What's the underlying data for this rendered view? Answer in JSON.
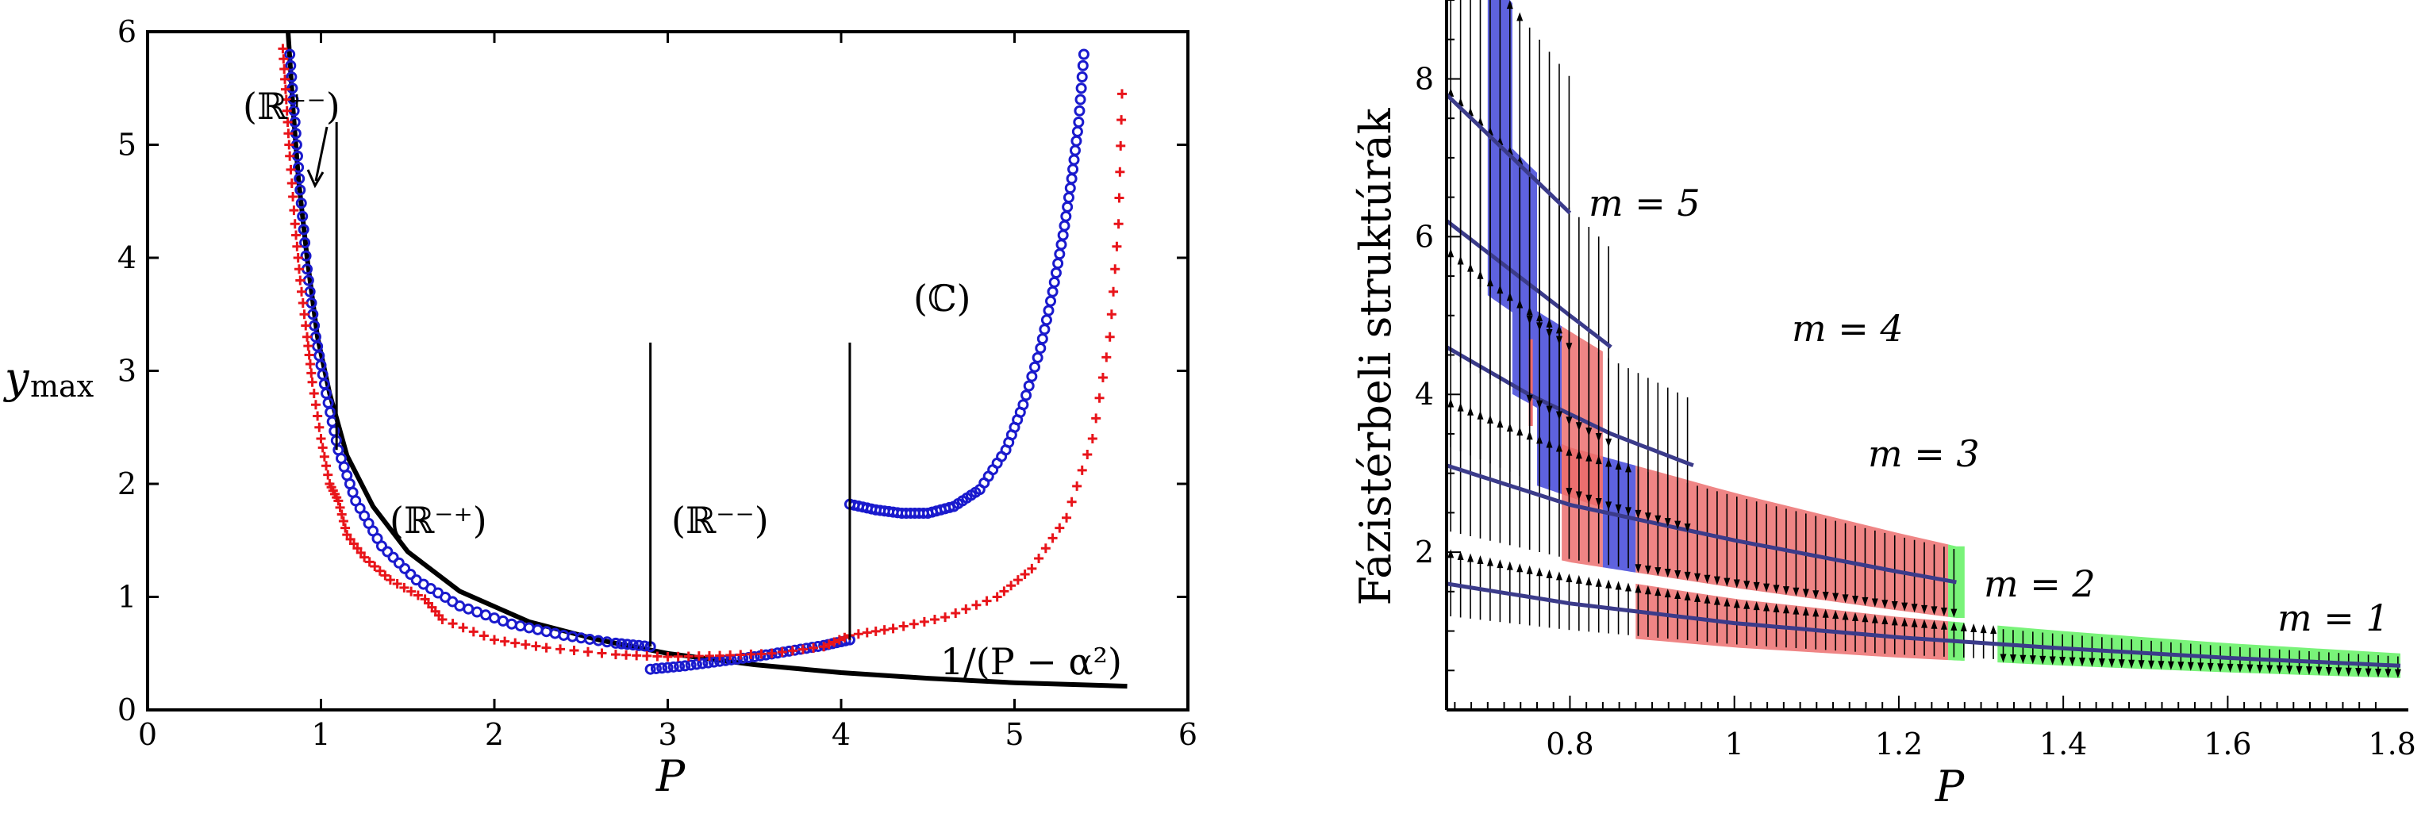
{
  "chart_data": [
    {
      "type": "scatter",
      "title": "",
      "xlabel": "P",
      "ylabel": "y",
      "ylabel_sub": "max",
      "xlim": [
        0,
        6
      ],
      "ylim": [
        0,
        6
      ],
      "xticks": [
        "0",
        "1",
        "2",
        "3",
        "4",
        "5",
        "6"
      ],
      "yticks": [
        "0",
        "1",
        "2",
        "3",
        "4",
        "5",
        "6"
      ],
      "grid": false,
      "series": [
        {
          "color": "#000000",
          "style": "line",
          "x": [
            0.81,
            0.84,
            0.87,
            0.92,
            0.98,
            1.05,
            1.15,
            1.3,
            1.5,
            1.8,
            2.2,
            2.6,
            3.0,
            3.5,
            4.0,
            4.5,
            5.0,
            5.65
          ],
          "y": [
            6.0,
            5.3,
            4.7,
            4.0,
            3.3,
            2.8,
            2.25,
            1.8,
            1.4,
            1.05,
            0.78,
            0.62,
            0.5,
            0.4,
            0.33,
            0.28,
            0.24,
            0.21
          ]
        },
        {
          "color": "#1a1acd",
          "style": "circles",
          "x": [
            0.82,
            0.85,
            0.88,
            0.92,
            0.97,
            1.03,
            1.1,
            1.2,
            1.35,
            1.55,
            1.8,
            2.1,
            2.4,
            2.7,
            2.9
          ],
          "y": [
            5.8,
            5.2,
            4.6,
            3.9,
            3.3,
            2.8,
            2.3,
            1.85,
            1.45,
            1.15,
            0.92,
            0.76,
            0.66,
            0.59,
            0.56
          ]
        },
        {
          "color": "#1a1acd",
          "style": "circles",
          "x": [
            2.9,
            3.1,
            3.3,
            3.5,
            3.7,
            3.9,
            4.05
          ],
          "y": [
            0.36,
            0.39,
            0.43,
            0.47,
            0.52,
            0.57,
            0.62
          ]
        },
        {
          "color": "#1a1acd",
          "style": "circles",
          "x": [
            4.05,
            4.2,
            4.35,
            4.5,
            4.65,
            4.8,
            4.95,
            5.05,
            5.15,
            5.22,
            5.28,
            5.33,
            5.37,
            5.4
          ],
          "y": [
            1.82,
            1.77,
            1.74,
            1.74,
            1.8,
            1.95,
            2.3,
            2.7,
            3.2,
            3.7,
            4.2,
            4.7,
            5.2,
            5.8
          ]
        },
        {
          "color": "#e8141a",
          "style": "plus",
          "x": [
            0.78,
            0.8,
            0.82,
            0.85,
            0.88,
            0.92,
            0.95,
            1.0,
            1.05,
            1.1,
            1.15,
            1.25,
            1.4,
            1.6,
            1.7,
            2.0,
            2.3,
            2.7,
            3.0,
            3.3,
            3.6,
            3.9,
            4.05,
            4.3,
            4.6,
            4.9,
            5.1,
            5.3,
            5.45,
            5.55,
            5.6,
            5.62
          ],
          "y": [
            5.85,
            5.4,
            4.9,
            4.3,
            3.8,
            3.3,
            2.9,
            2.4,
            2.0,
            1.85,
            1.55,
            1.35,
            1.15,
            0.98,
            0.8,
            0.62,
            0.55,
            0.49,
            0.47,
            0.48,
            0.5,
            0.56,
            0.66,
            0.72,
            0.82,
            1.0,
            1.25,
            1.7,
            2.4,
            3.3,
            4.3,
            5.45
          ]
        }
      ],
      "annotations": {
        "r_pm": "(ℝ⁺⁻)",
        "r_mp": "(ℝ⁻⁺)",
        "r_mm": "(ℝ⁻⁻)",
        "c": "(ℂ)",
        "formula": "1/(P − α²)"
      },
      "vlines": [
        {
          "x": 1.09,
          "y": [
            2.3,
            5.2
          ]
        },
        {
          "x": 2.9,
          "y": [
            0.56,
            3.25
          ]
        },
        {
          "x": 4.05,
          "y": [
            0.62,
            3.25
          ]
        }
      ]
    },
    {
      "type": "line",
      "title": "",
      "xlabel": "P",
      "ylabel": "Fázistérbeli struktúrák",
      "xlim": [
        0.65,
        1.81
      ],
      "ylim": [
        0,
        9
      ],
      "xticks": [
        "0.8",
        "1",
        "1.2",
        "1.4",
        "1.6",
        "1.8"
      ],
      "yticks": [
        "2",
        "4",
        "6",
        "8"
      ],
      "grid": false,
      "series": [
        {
          "name": "m = 1",
          "x": [
            0.65,
            0.8,
            1.0,
            1.2,
            1.4,
            1.6,
            1.81
          ],
          "y": [
            1.6,
            1.35,
            1.1,
            0.92,
            0.78,
            0.66,
            0.56
          ]
        },
        {
          "name": "m = 2",
          "x": [
            0.65,
            0.8,
            1.0,
            1.2,
            1.27
          ],
          "y": [
            3.1,
            2.6,
            2.15,
            1.75,
            1.62
          ]
        },
        {
          "name": "m = 3",
          "x": [
            0.65,
            0.75,
            0.85,
            0.95
          ],
          "y": [
            4.6,
            4.0,
            3.5,
            3.1
          ]
        },
        {
          "name": "m = 4",
          "x": [
            0.65,
            0.7,
            0.75,
            0.8,
            0.85
          ],
          "y": [
            6.2,
            5.8,
            5.4,
            5.0,
            4.6
          ]
        },
        {
          "name": "m = 5",
          "x": [
            0.65,
            0.7,
            0.75,
            0.8
          ],
          "y": [
            7.8,
            7.3,
            6.8,
            6.3
          ]
        }
      ],
      "colors": {
        "curve": "#3b3b8a",
        "blue": "#3b40d8",
        "red": "#ec6a6a",
        "green": "#5cf05c"
      }
    }
  ]
}
